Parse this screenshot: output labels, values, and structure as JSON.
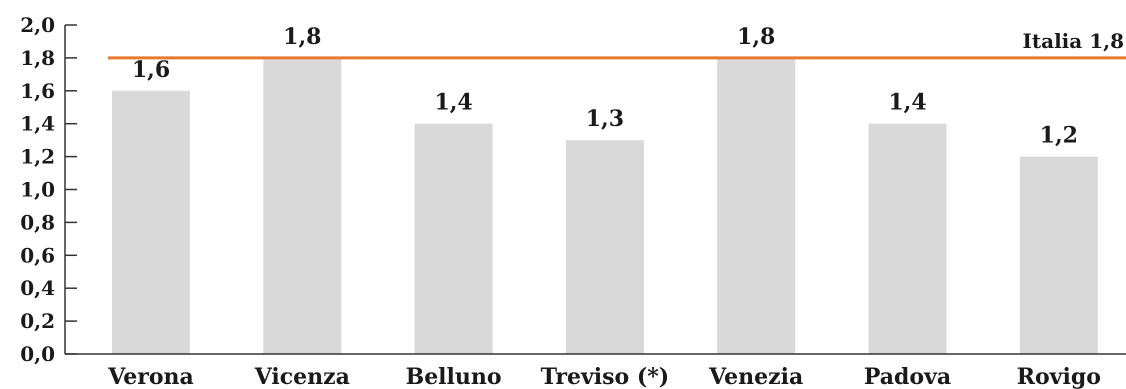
{
  "chart_data": {
    "type": "bar",
    "categories": [
      "Verona",
      "Vicenza",
      "Belluno",
      "Treviso (*)",
      "Venezia",
      "Padova",
      "Rovigo"
    ],
    "values": [
      1.6,
      1.8,
      1.4,
      1.3,
      1.8,
      1.4,
      1.2
    ],
    "value_labels": [
      "1,6",
      "1,8",
      "1,4",
      "1,3",
      "1,8",
      "1,4",
      "1,2"
    ],
    "yticks": [
      0.0,
      0.2,
      0.4,
      0.6,
      0.8,
      1.0,
      1.2,
      1.4,
      1.6,
      1.8,
      2.0
    ],
    "ytick_labels": [
      "0,0",
      "0,2",
      "0,4",
      "0,6",
      "0,8",
      "1,0",
      "1,2",
      "1,4",
      "1,6",
      "1,8",
      "2,0"
    ],
    "ylim": [
      0,
      2.0
    ],
    "grid": false,
    "reference_line": {
      "value": 1.8,
      "label": "Italia 1,8",
      "color": "#e8782c"
    },
    "bar_color": "#d9d9d9",
    "axis_color": "#333333"
  }
}
